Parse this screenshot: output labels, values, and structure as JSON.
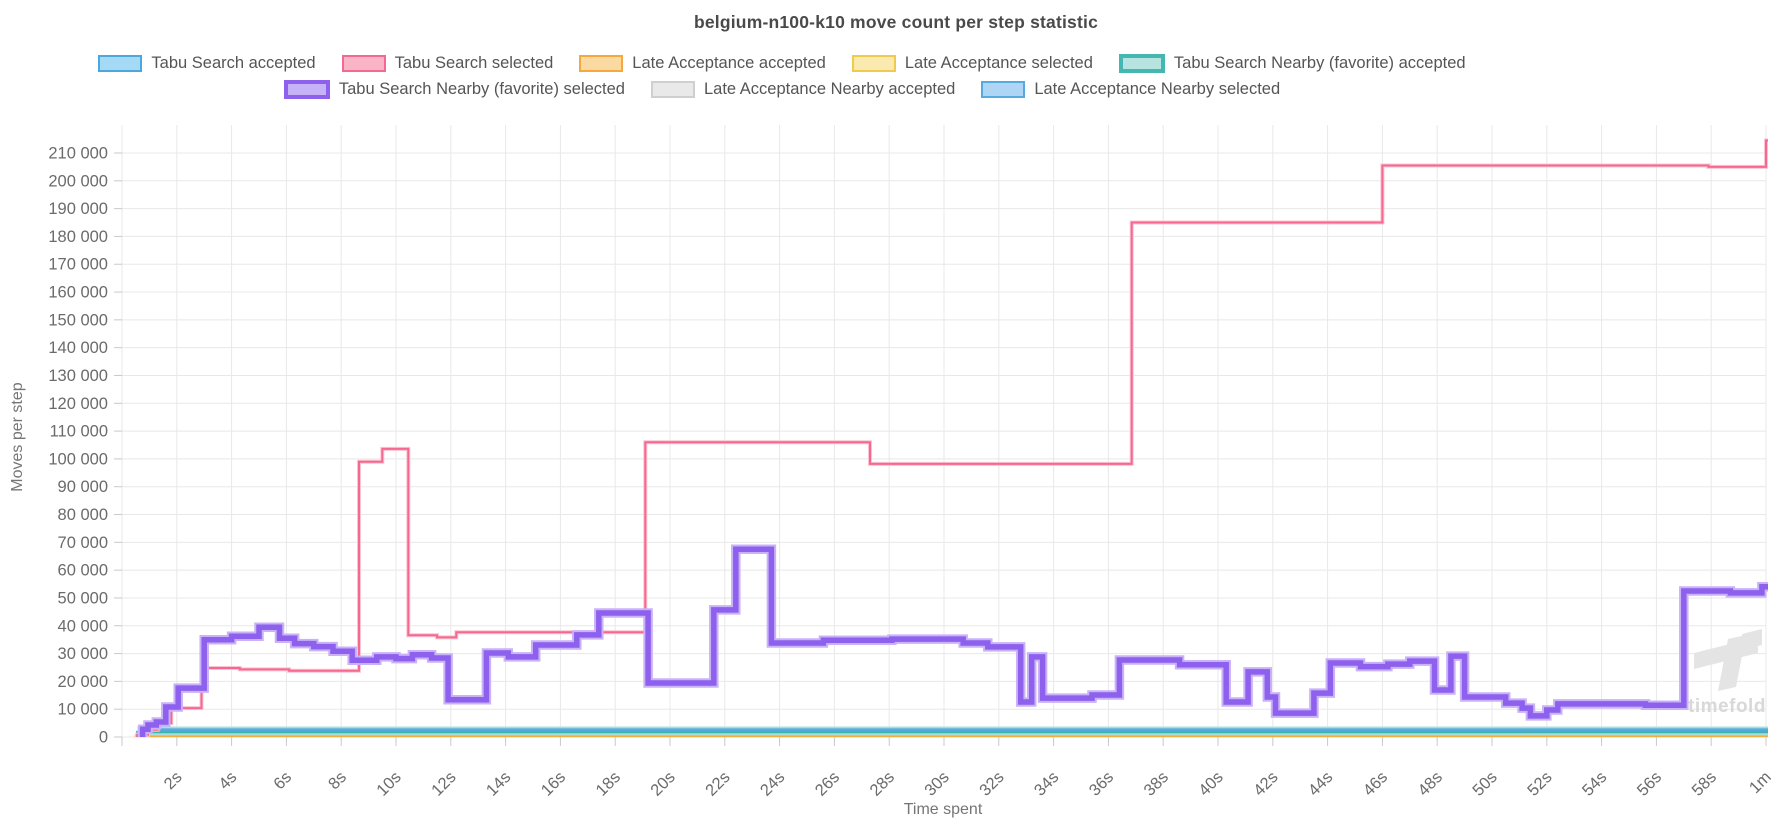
{
  "title": "belgium-n100-k10 move count per step statistic",
  "axes": {
    "y_label": "Moves per step",
    "x_label": "Time spent",
    "y_ticks": [
      {
        "v": 0,
        "label": "0"
      },
      {
        "v": 10000,
        "label": "10 000"
      },
      {
        "v": 20000,
        "label": "20 000"
      },
      {
        "v": 30000,
        "label": "30 000"
      },
      {
        "v": 40000,
        "label": "40 000"
      },
      {
        "v": 50000,
        "label": "50 000"
      },
      {
        "v": 60000,
        "label": "60 000"
      },
      {
        "v": 70000,
        "label": "70 000"
      },
      {
        "v": 80000,
        "label": "80 000"
      },
      {
        "v": 90000,
        "label": "90 000"
      },
      {
        "v": 100000,
        "label": "100 000"
      },
      {
        "v": 110000,
        "label": "110 000"
      },
      {
        "v": 120000,
        "label": "120 000"
      },
      {
        "v": 130000,
        "label": "130 000"
      },
      {
        "v": 140000,
        "label": "140 000"
      },
      {
        "v": 150000,
        "label": "150 000"
      },
      {
        "v": 160000,
        "label": "160 000"
      },
      {
        "v": 170000,
        "label": "170 000"
      },
      {
        "v": 180000,
        "label": "180 000"
      },
      {
        "v": 190000,
        "label": "190 000"
      },
      {
        "v": 200000,
        "label": "200 000"
      },
      {
        "v": 210000,
        "label": "210 000"
      }
    ],
    "x_ticks": [
      {
        "t": 2,
        "label": "2s"
      },
      {
        "t": 4,
        "label": "4s"
      },
      {
        "t": 6,
        "label": "6s"
      },
      {
        "t": 8,
        "label": "8s"
      },
      {
        "t": 10,
        "label": "10s"
      },
      {
        "t": 12,
        "label": "12s"
      },
      {
        "t": 14,
        "label": "14s"
      },
      {
        "t": 16,
        "label": "16s"
      },
      {
        "t": 18,
        "label": "18s"
      },
      {
        "t": 20,
        "label": "20s"
      },
      {
        "t": 22,
        "label": "22s"
      },
      {
        "t": 24,
        "label": "24s"
      },
      {
        "t": 26,
        "label": "26s"
      },
      {
        "t": 28,
        "label": "28s"
      },
      {
        "t": 30,
        "label": "30s"
      },
      {
        "t": 32,
        "label": "32s"
      },
      {
        "t": 34,
        "label": "34s"
      },
      {
        "t": 36,
        "label": "36s"
      },
      {
        "t": 38,
        "label": "38s"
      },
      {
        "t": 40,
        "label": "40s"
      },
      {
        "t": 42,
        "label": "42s"
      },
      {
        "t": 44,
        "label": "44s"
      },
      {
        "t": 46,
        "label": "46s"
      },
      {
        "t": 48,
        "label": "48s"
      },
      {
        "t": 50,
        "label": "50s"
      },
      {
        "t": 52,
        "label": "52s"
      },
      {
        "t": 54,
        "label": "54s"
      },
      {
        "t": 56,
        "label": "56s"
      },
      {
        "t": 58,
        "label": "58s"
      },
      {
        "t": 60,
        "label": "1m"
      }
    ],
    "x_grid_step_seconds": 2
  },
  "legend": {
    "rows": [
      [
        {
          "label": "Tabu Search accepted",
          "fill": "#a6d9f5",
          "border": "#49a8dd",
          "thick": false
        },
        {
          "label": "Tabu Search selected",
          "fill": "#fab4c8",
          "border": "#f5688f",
          "thick": false
        },
        {
          "label": "Late Acceptance accepted",
          "fill": "#fbd9a3",
          "border": "#f5a83c",
          "thick": false
        },
        {
          "label": "Late Acceptance selected",
          "fill": "#faeab0",
          "border": "#f0ca4d",
          "thick": false
        },
        {
          "label": "Tabu Search Nearby (favorite) accepted",
          "fill": "#b7e4e0",
          "border": "#44b8b0",
          "thick": true
        }
      ],
      [
        {
          "label": "Tabu Search Nearby (favorite) selected",
          "fill": "#c7b2f8",
          "border": "#8d60ee",
          "thick": true
        },
        {
          "label": "Late Acceptance Nearby accepted",
          "fill": "#e9e9e9",
          "border": "#cfcfcf",
          "thick": false
        },
        {
          "label": "Late Acceptance Nearby selected",
          "fill": "#aed5f3",
          "border": "#55aae0",
          "thick": false
        }
      ]
    ]
  },
  "watermark": {
    "text": "timefold",
    "text_color": "#d8d8d8",
    "logo_color": "#e4e4e4"
  },
  "chart_data": {
    "type": "line",
    "step_interpolation": true,
    "x_unit": "seconds",
    "x_range": [
      0,
      60.3
    ],
    "ylim": [
      0,
      215000
    ],
    "grid": true,
    "legend_position": "top",
    "series": [
      {
        "id": "la-nearby-accepted",
        "name": "Late Acceptance Nearby accepted",
        "color": "#cfcfcf",
        "width": 2,
        "points": [
          [
            0.75,
            2400
          ],
          [
            60.2,
            2400
          ]
        ]
      },
      {
        "id": "la-selected",
        "name": "Late Acceptance selected",
        "color": "#f0ca4d",
        "width": 2,
        "points": [
          [
            0.5,
            240
          ],
          [
            60.2,
            240
          ]
        ]
      },
      {
        "id": "la-accepted",
        "name": "Late Acceptance accepted",
        "color": "#f5a83c",
        "width": 2,
        "points": [
          [
            0.5,
            380
          ],
          [
            60.2,
            380
          ]
        ]
      },
      {
        "id": "tabu-accepted",
        "name": "Tabu Search accepted",
        "color": "#49a8dd",
        "width": 2,
        "points": [
          [
            0.55,
            1900
          ],
          [
            60.2,
            1900
          ]
        ]
      },
      {
        "id": "tabu-nearby-accepted",
        "name": "Tabu Search Nearby (favorite) accepted",
        "color": "#3eb4ad",
        "width": 4.5,
        "halo_color": "#a9ded9",
        "halo_width": 9,
        "points": [
          [
            0.73,
            2150
          ],
          [
            60.2,
            2150
          ]
        ]
      },
      {
        "id": "la-nearby-selected",
        "name": "Late Acceptance Nearby selected",
        "color": "#55aae0",
        "width": 3,
        "points": [
          [
            0.75,
            2550
          ],
          [
            60.2,
            2550
          ]
        ]
      },
      {
        "id": "tabu-selected",
        "name": "Tabu Search selected",
        "color": "#f5688f",
        "width": 2,
        "halo_color": "#fbc4d3",
        "halo_width": 4,
        "points": [
          [
            0.55,
            800
          ],
          [
            0.95,
            2600
          ],
          [
            1.3,
            5000
          ],
          [
            1.8,
            10400
          ],
          [
            2.9,
            24800
          ],
          [
            4.3,
            24300
          ],
          [
            6.1,
            23800
          ],
          [
            8.65,
            99000
          ],
          [
            9.5,
            103600
          ],
          [
            10.45,
            36600
          ],
          [
            11.5,
            35800
          ],
          [
            12.2,
            37700
          ],
          [
            19.1,
            106000
          ],
          [
            27.3,
            98200
          ],
          [
            36.85,
            185000
          ],
          [
            46.0,
            205500
          ],
          [
            57.9,
            205000
          ],
          [
            60.0,
            214500
          ],
          [
            60.1,
            214500
          ]
        ]
      },
      {
        "id": "tabu-nearby-selected",
        "name": "Tabu Search Nearby (favorite) selected",
        "color": "#8d60ee",
        "width": 5.5,
        "halo_color": "#c9b2f8",
        "halo_width": 9.5,
        "points": [
          [
            0.75,
            2800
          ],
          [
            0.95,
            4300
          ],
          [
            1.25,
            5400
          ],
          [
            1.6,
            10800
          ],
          [
            2.05,
            17600
          ],
          [
            3.0,
            35000
          ],
          [
            4.0,
            36200
          ],
          [
            5.0,
            39500
          ],
          [
            5.75,
            35500
          ],
          [
            6.3,
            33600
          ],
          [
            7.0,
            32500
          ],
          [
            7.7,
            30800
          ],
          [
            8.4,
            27600
          ],
          [
            9.3,
            28800
          ],
          [
            10.0,
            28200
          ],
          [
            10.6,
            29600
          ],
          [
            11.3,
            28400
          ],
          [
            11.9,
            13400
          ],
          [
            13.3,
            30200
          ],
          [
            14.1,
            28800
          ],
          [
            15.1,
            33100
          ],
          [
            16.6,
            36700
          ],
          [
            17.4,
            44600
          ],
          [
            19.2,
            19400
          ],
          [
            21.6,
            45700
          ],
          [
            22.4,
            67500
          ],
          [
            23.7,
            33800
          ],
          [
            25.6,
            34800
          ],
          [
            28.1,
            35200
          ],
          [
            30.7,
            33800
          ],
          [
            31.6,
            32400
          ],
          [
            32.8,
            12600
          ],
          [
            33.2,
            28800
          ],
          [
            33.6,
            14000
          ],
          [
            35.4,
            15100
          ],
          [
            36.4,
            27700
          ],
          [
            38.6,
            26000
          ],
          [
            40.3,
            12600
          ],
          [
            41.1,
            23400
          ],
          [
            41.8,
            14400
          ],
          [
            42.1,
            8600
          ],
          [
            43.5,
            15800
          ],
          [
            44.1,
            26600
          ],
          [
            45.2,
            25300
          ],
          [
            46.2,
            26200
          ],
          [
            47.0,
            27300
          ],
          [
            47.9,
            16900
          ],
          [
            48.5,
            29100
          ],
          [
            49.0,
            14400
          ],
          [
            50.5,
            12200
          ],
          [
            51.1,
            10400
          ],
          [
            51.4,
            7600
          ],
          [
            52.0,
            9700
          ],
          [
            52.4,
            11900
          ],
          [
            55.6,
            11400
          ],
          [
            57.0,
            52500
          ],
          [
            58.7,
            51800
          ],
          [
            59.85,
            54000
          ],
          [
            60.15,
            54000
          ]
        ]
      }
    ]
  }
}
